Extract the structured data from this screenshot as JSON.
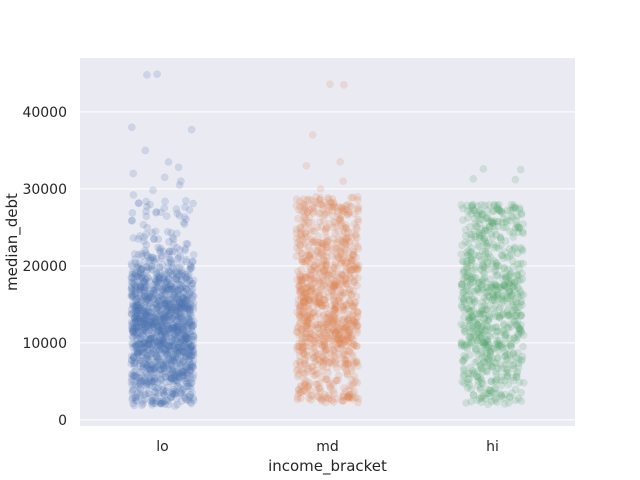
{
  "chart_data": {
    "type": "scatter",
    "subtype": "strip",
    "xlabel": "income_bracket",
    "ylabel": "median_debt",
    "categories": [
      "lo",
      "md",
      "hi"
    ],
    "ylim": [
      -800,
      47000
    ],
    "yticks": [
      0,
      10000,
      20000,
      30000,
      40000
    ],
    "ytick_labels": [
      "0",
      "10000",
      "20000",
      "30000",
      "40000"
    ],
    "grid": true,
    "legend": "none",
    "background": "#eaeaf2",
    "series": [
      {
        "category": "lo",
        "color": "#4c72b0",
        "n_points": 1400,
        "dense_range": [
          3500,
          20000
        ],
        "full_range": [
          1800,
          28500
        ],
        "outliers": [
          29200,
          29800,
          30500,
          31000,
          31500,
          32000,
          32800,
          33500,
          35000,
          37700,
          38000,
          44800,
          44900
        ]
      },
      {
        "category": "md",
        "color": "#dd8452",
        "n_points": 1000,
        "dense_range": [
          3800,
          27000
        ],
        "full_range": [
          2200,
          29000
        ],
        "outliers": [
          30000,
          31000,
          33000,
          33500,
          37000,
          43500,
          43600
        ]
      },
      {
        "category": "hi",
        "color": "#55a868",
        "n_points": 750,
        "dense_range": [
          3500,
          27000
        ],
        "full_range": [
          2000,
          28000
        ],
        "outliers": [
          31200,
          31300,
          32500,
          32600
        ]
      }
    ]
  }
}
